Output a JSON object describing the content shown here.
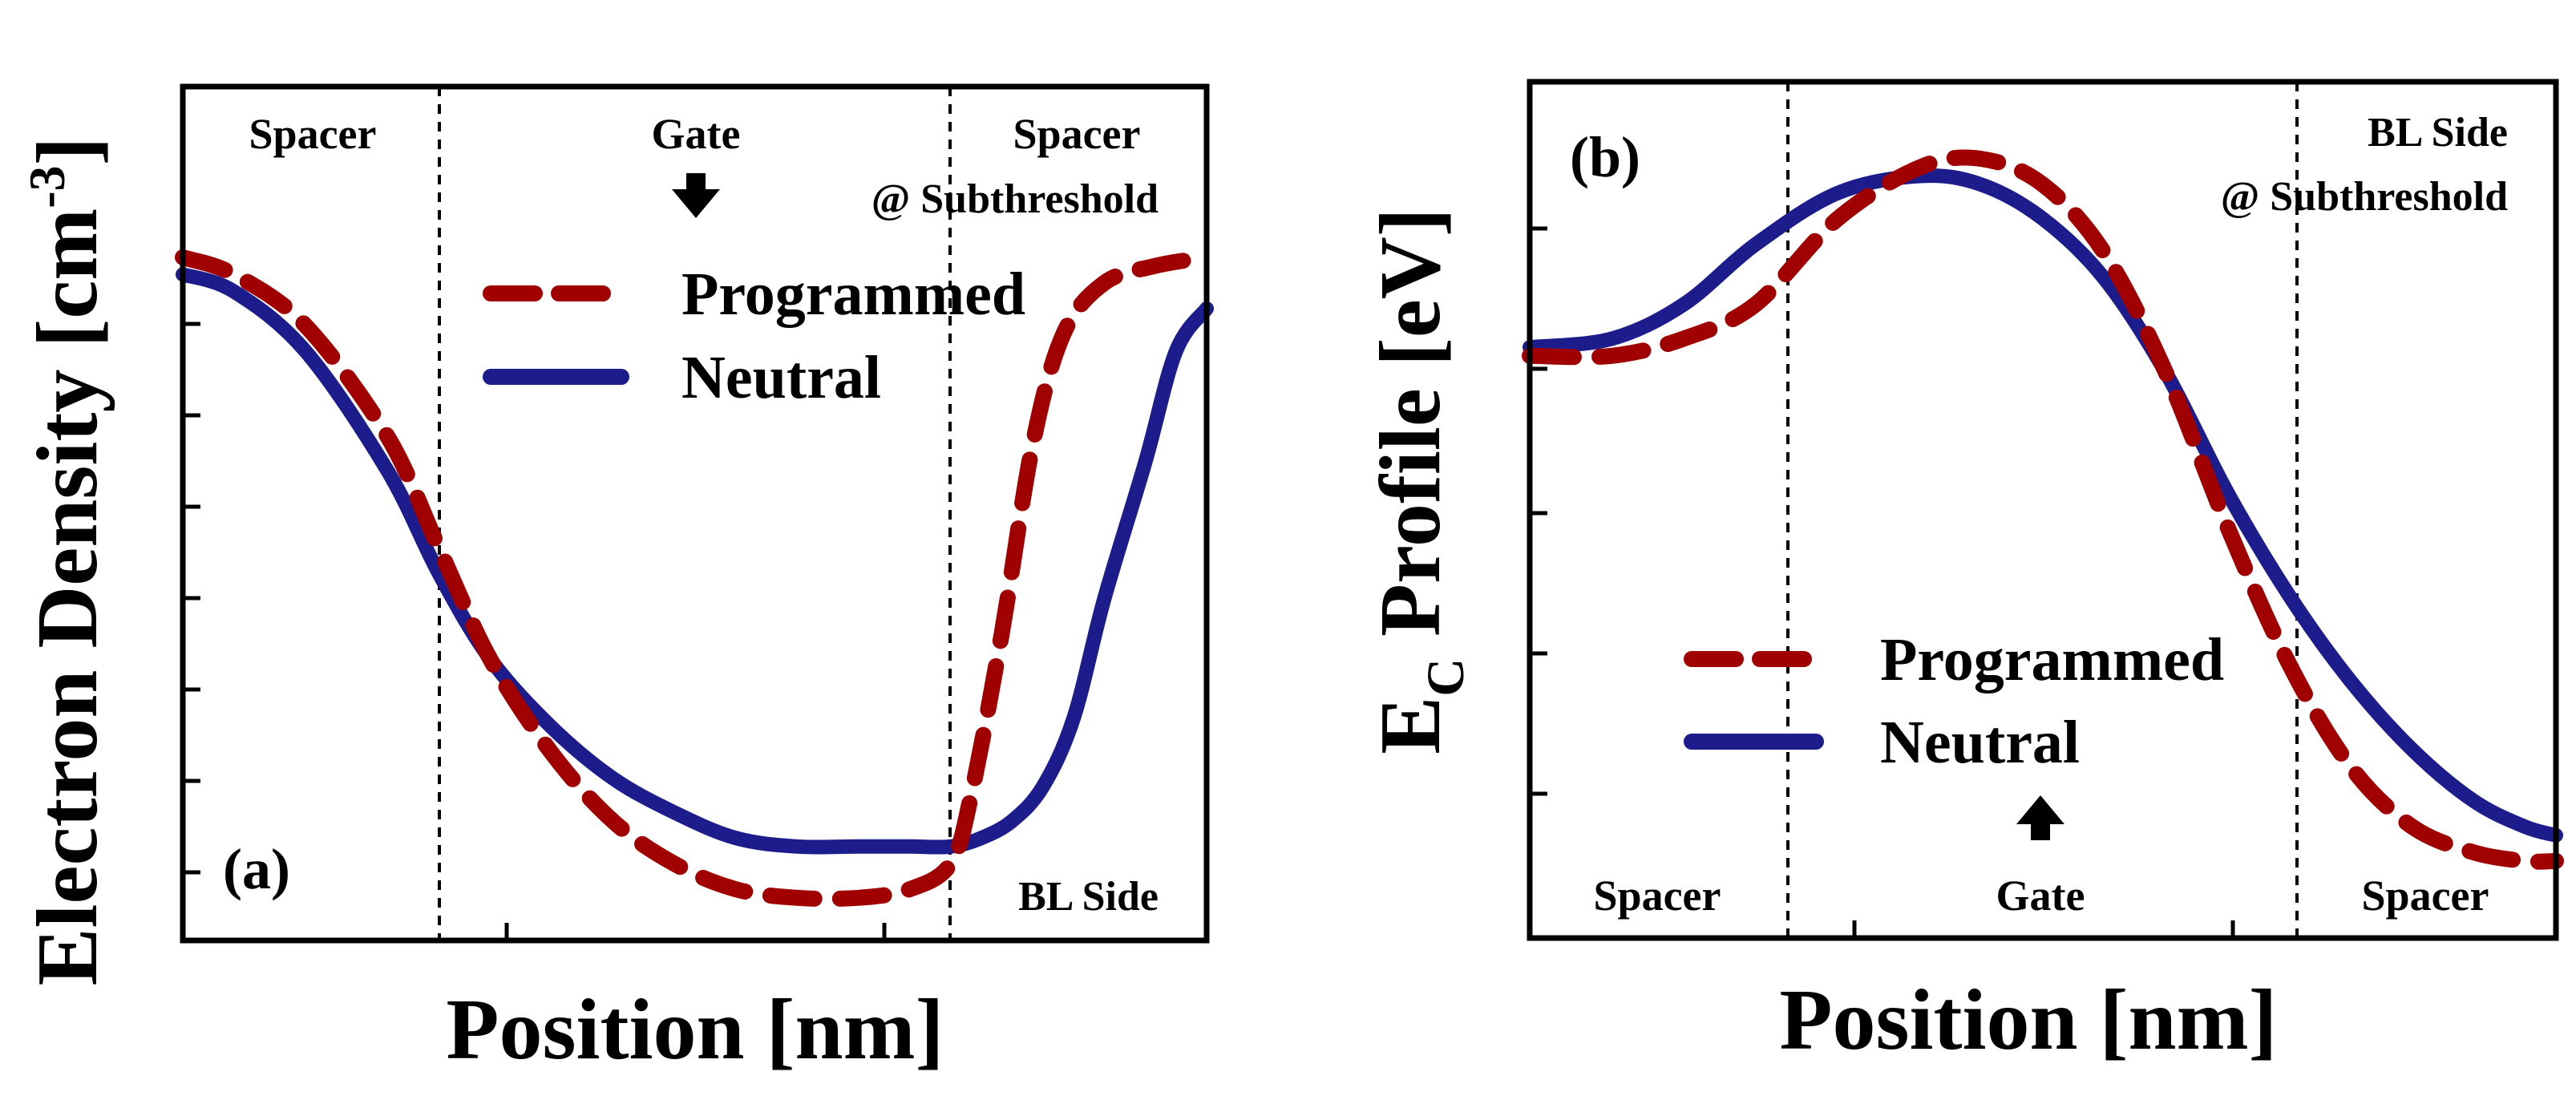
{
  "chart_data": [
    {
      "type": "line",
      "panel_label": "(a)",
      "ylabel": "Electron Density [cm",
      "ylabel_sup": "-3",
      "ylabel_close": "]",
      "xlabel": "Position [nm]",
      "regions": [
        "Spacer",
        "Gate",
        "Spacer"
      ],
      "annotations": {
        "condition": "@ Subthreshold",
        "side": "BL Side",
        "arrow": "↓"
      },
      "xlim": [
        0,
        1
      ],
      "ylim": [
        0,
        1
      ],
      "series": [
        {
          "name": "Programmed",
          "style": "dashed",
          "color": "#a00000",
          "x": [
            0,
            0.05,
            0.12,
            0.2,
            0.25,
            0.3,
            0.36,
            0.42,
            0.48,
            0.54,
            0.6,
            0.66,
            0.71,
            0.75,
            0.77,
            0.8,
            0.83,
            0.86,
            0.9,
            0.95,
            1
          ],
          "y": [
            0.8,
            0.78,
            0.72,
            0.59,
            0.46,
            0.33,
            0.22,
            0.14,
            0.09,
            0.06,
            0.05,
            0.05,
            0.06,
            0.09,
            0.17,
            0.36,
            0.58,
            0.71,
            0.77,
            0.79,
            0.8
          ]
        },
        {
          "name": "Neutral",
          "style": "solid",
          "color": "#1c1c8c",
          "x": [
            0,
            0.05,
            0.12,
            0.2,
            0.25,
            0.3,
            0.36,
            0.42,
            0.48,
            0.54,
            0.6,
            0.66,
            0.71,
            0.75,
            0.78,
            0.81,
            0.84,
            0.87,
            0.9,
            0.94,
            0.97,
            1
          ],
          "y": [
            0.78,
            0.76,
            0.69,
            0.55,
            0.43,
            0.33,
            0.25,
            0.19,
            0.15,
            0.12,
            0.11,
            0.11,
            0.11,
            0.11,
            0.12,
            0.14,
            0.18,
            0.26,
            0.4,
            0.56,
            0.69,
            0.74
          ]
        }
      ]
    },
    {
      "type": "line",
      "panel_label": "(b)",
      "ylabel_main": "E",
      "ylabel_sub": "C",
      "ylabel_rest": " Profile [eV]",
      "xlabel": "Position [nm]",
      "regions": [
        "Spacer",
        "Gate",
        "Spacer"
      ],
      "annotations": {
        "side": "BL Side",
        "condition": "@ Subthreshold",
        "arrow": "↑"
      },
      "xlim": [
        0,
        1
      ],
      "ylim": [
        0,
        1
      ],
      "series": [
        {
          "name": "Programmed",
          "style": "dashed",
          "color": "#a00000",
          "x": [
            0,
            0.08,
            0.15,
            0.22,
            0.3,
            0.38,
            0.44,
            0.5,
            0.56,
            0.62,
            0.68,
            0.74,
            0.8,
            0.86,
            0.92,
            0.97,
            1
          ],
          "y": [
            0.68,
            0.68,
            0.7,
            0.74,
            0.84,
            0.9,
            0.91,
            0.88,
            0.8,
            0.66,
            0.48,
            0.32,
            0.2,
            0.13,
            0.1,
            0.09,
            0.09
          ]
        },
        {
          "name": "Neutral",
          "style": "solid",
          "color": "#1c1c8c",
          "x": [
            0,
            0.08,
            0.15,
            0.22,
            0.3,
            0.38,
            0.44,
            0.5,
            0.56,
            0.62,
            0.68,
            0.74,
            0.8,
            0.86,
            0.92,
            0.97,
            1
          ],
          "y": [
            0.69,
            0.7,
            0.74,
            0.81,
            0.87,
            0.89,
            0.88,
            0.84,
            0.77,
            0.66,
            0.52,
            0.4,
            0.3,
            0.22,
            0.16,
            0.13,
            0.12
          ]
        }
      ]
    }
  ]
}
